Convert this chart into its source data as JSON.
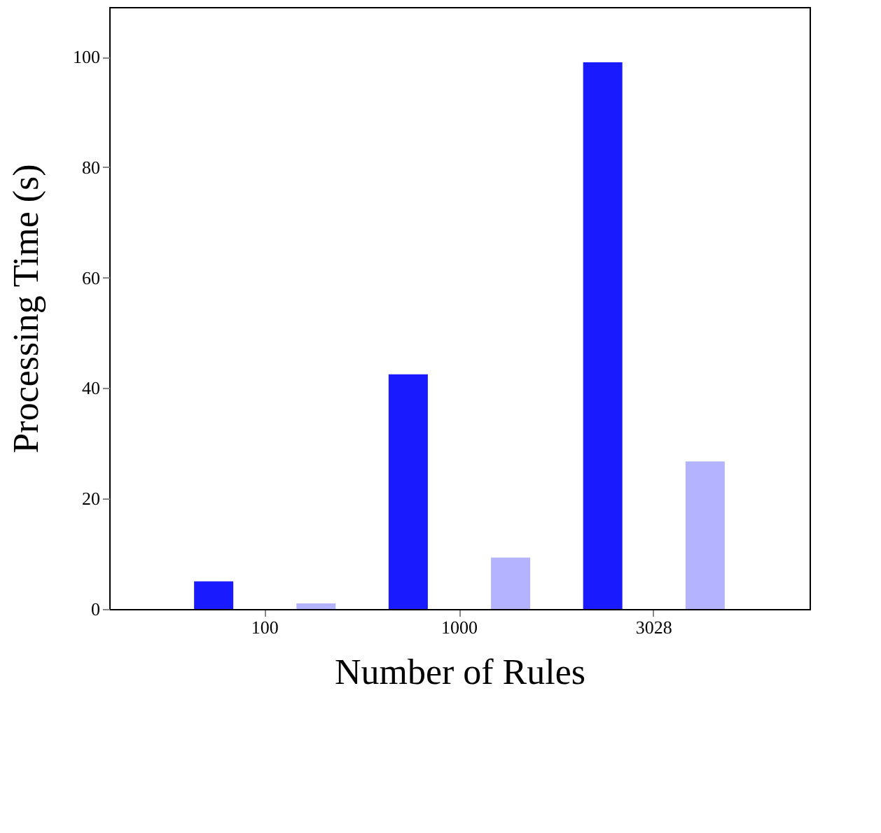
{
  "chart_data": {
    "type": "bar",
    "xlabel": "Number of Rules",
    "ylabel": "Processing Time (s)",
    "categories": [
      "100",
      "1000",
      "3028"
    ],
    "series": [
      {
        "color": "#1a1aff",
        "values": [
          5,
          42.5,
          99
        ]
      },
      {
        "color": "#b3b3ff",
        "values": [
          1,
          9.3,
          26.7
        ]
      }
    ],
    "ylim": [
      0,
      109
    ],
    "yticks": [
      0,
      20,
      40,
      60,
      80,
      100
    ],
    "grid": false
  }
}
